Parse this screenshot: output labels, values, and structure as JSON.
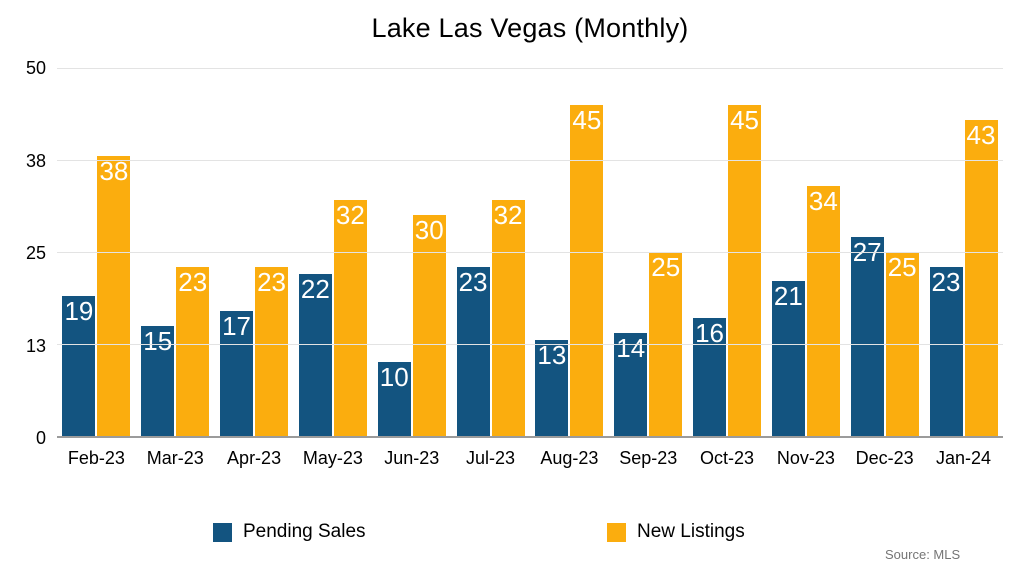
{
  "chart_data": {
    "type": "bar",
    "title": "Lake Las Vegas (Monthly)",
    "categories": [
      "Feb-23",
      "Mar-23",
      "Apr-23",
      "May-23",
      "Jun-23",
      "Jul-23",
      "Aug-23",
      "Sep-23",
      "Oct-23",
      "Nov-23",
      "Dec-23",
      "Jan-24"
    ],
    "series": [
      {
        "name": "Pending Sales",
        "color": "#135480",
        "values": [
          19,
          15,
          17,
          22,
          10,
          23,
          13,
          14,
          16,
          21,
          27,
          23
        ]
      },
      {
        "name": "New Listings",
        "color": "#FBAD0E",
        "values": [
          38,
          23,
          23,
          32,
          30,
          32,
          45,
          25,
          45,
          34,
          25,
          43
        ]
      }
    ],
    "xlabel": "",
    "ylabel": "",
    "ylim": [
      0,
      50
    ],
    "y_tick_labels_bottom_to_top": [
      "0",
      "13",
      "25",
      "38",
      "50"
    ],
    "grid": "horizontal",
    "data_labels": true,
    "data_label_color": "#ffffff",
    "legend_position": "bottom",
    "source": "Source: MLS"
  }
}
